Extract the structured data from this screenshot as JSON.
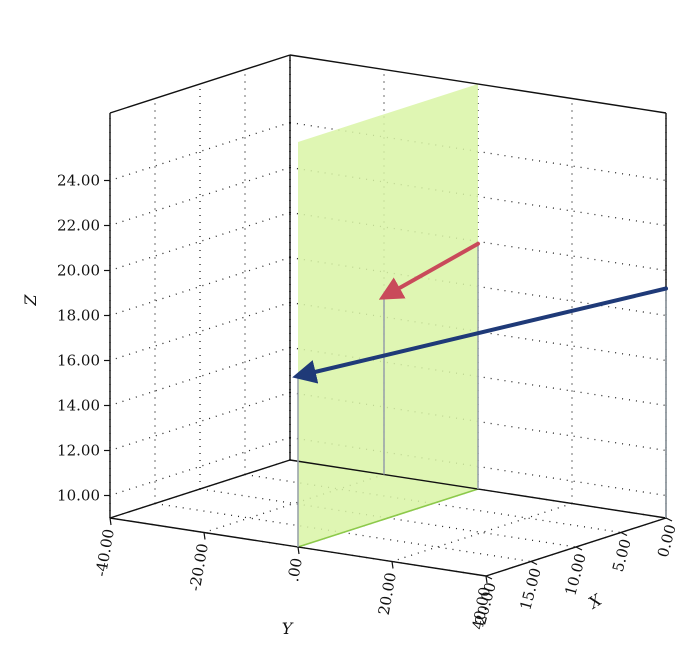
{
  "chart_data": {
    "type": "3d-scatter-vectors",
    "axes": {
      "x": {
        "label": "X",
        "ticks": [
          "0.00",
          "5.00",
          "10.00",
          "15.00",
          "20.00"
        ],
        "range": [
          0,
          20
        ]
      },
      "y": {
        "label": "Y",
        "ticks": [
          "-40.00",
          "-20.00",
          ".00",
          "20.00",
          "40.00"
        ],
        "range": [
          -40,
          40
        ]
      },
      "z": {
        "label": "Z",
        "ticks": [
          "10.00",
          "12.00",
          "14.00",
          "16.00",
          "18.00",
          "20.00",
          "22.00",
          "24.00"
        ],
        "range": [
          9,
          27
        ]
      }
    },
    "grid": "dotted",
    "plane": {
      "description": "boundary plane at Y = 0",
      "color": "#d9f5a6"
    },
    "vectors": [
      {
        "color": "#c94a5a",
        "tail": {
          "x": 0,
          "y": 0,
          "z": 19.9
        },
        "head": {
          "x": 0,
          "y": -20,
          "z": 16.9
        }
      },
      {
        "color": "#1f3a78",
        "tail": {
          "x": 0,
          "y": 40,
          "z": 19.2
        },
        "head": {
          "x": 20,
          "y": 0,
          "z": 16.6
        }
      }
    ]
  }
}
